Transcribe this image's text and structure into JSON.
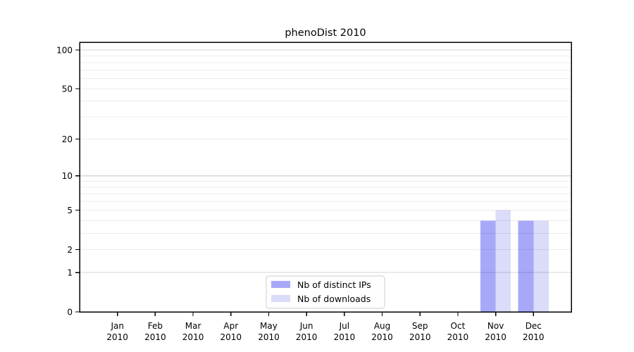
{
  "chart_data": {
    "type": "bar",
    "title": "phenoDist 2010",
    "categories": [
      "Jan 2010",
      "Feb 2010",
      "Mar 2010",
      "Apr 2010",
      "May 2010",
      "Jun 2010",
      "Jul 2010",
      "Aug 2010",
      "Sep 2010",
      "Oct 2010",
      "Nov 2010",
      "Dec 2010"
    ],
    "series": [
      {
        "name": "Nb of distinct IPs",
        "color": "#a8a8f8",
        "values": [
          0,
          0,
          0,
          0,
          0,
          0,
          0,
          0,
          0,
          0,
          4,
          4
        ]
      },
      {
        "name": "Nb of downloads",
        "color": "#dbdbfa",
        "values": [
          0,
          0,
          0,
          0,
          0,
          0,
          0,
          0,
          0,
          0,
          5,
          4
        ]
      }
    ],
    "xlabel": "",
    "ylabel": "",
    "yscale": "log1p",
    "ylim": [
      0,
      115
    ],
    "yticks_labeled": [
      0,
      1,
      2,
      5,
      10,
      20,
      50,
      100
    ],
    "gridlines_major": [
      1,
      10,
      100
    ],
    "gridlines_minor": [
      2,
      3,
      4,
      5,
      6,
      7,
      8,
      9,
      20,
      30,
      40,
      50,
      60,
      70,
      80,
      90
    ],
    "grid": "horizontal",
    "legend_position": "bottom-center",
    "colors": {
      "axis": "#000000",
      "grid_major": "rgba(0,0,0,0.16)",
      "grid_minor": "rgba(0,0,0,0.075)",
      "legend_border": "#cccccc",
      "legend_bg": "#ffffff"
    }
  }
}
